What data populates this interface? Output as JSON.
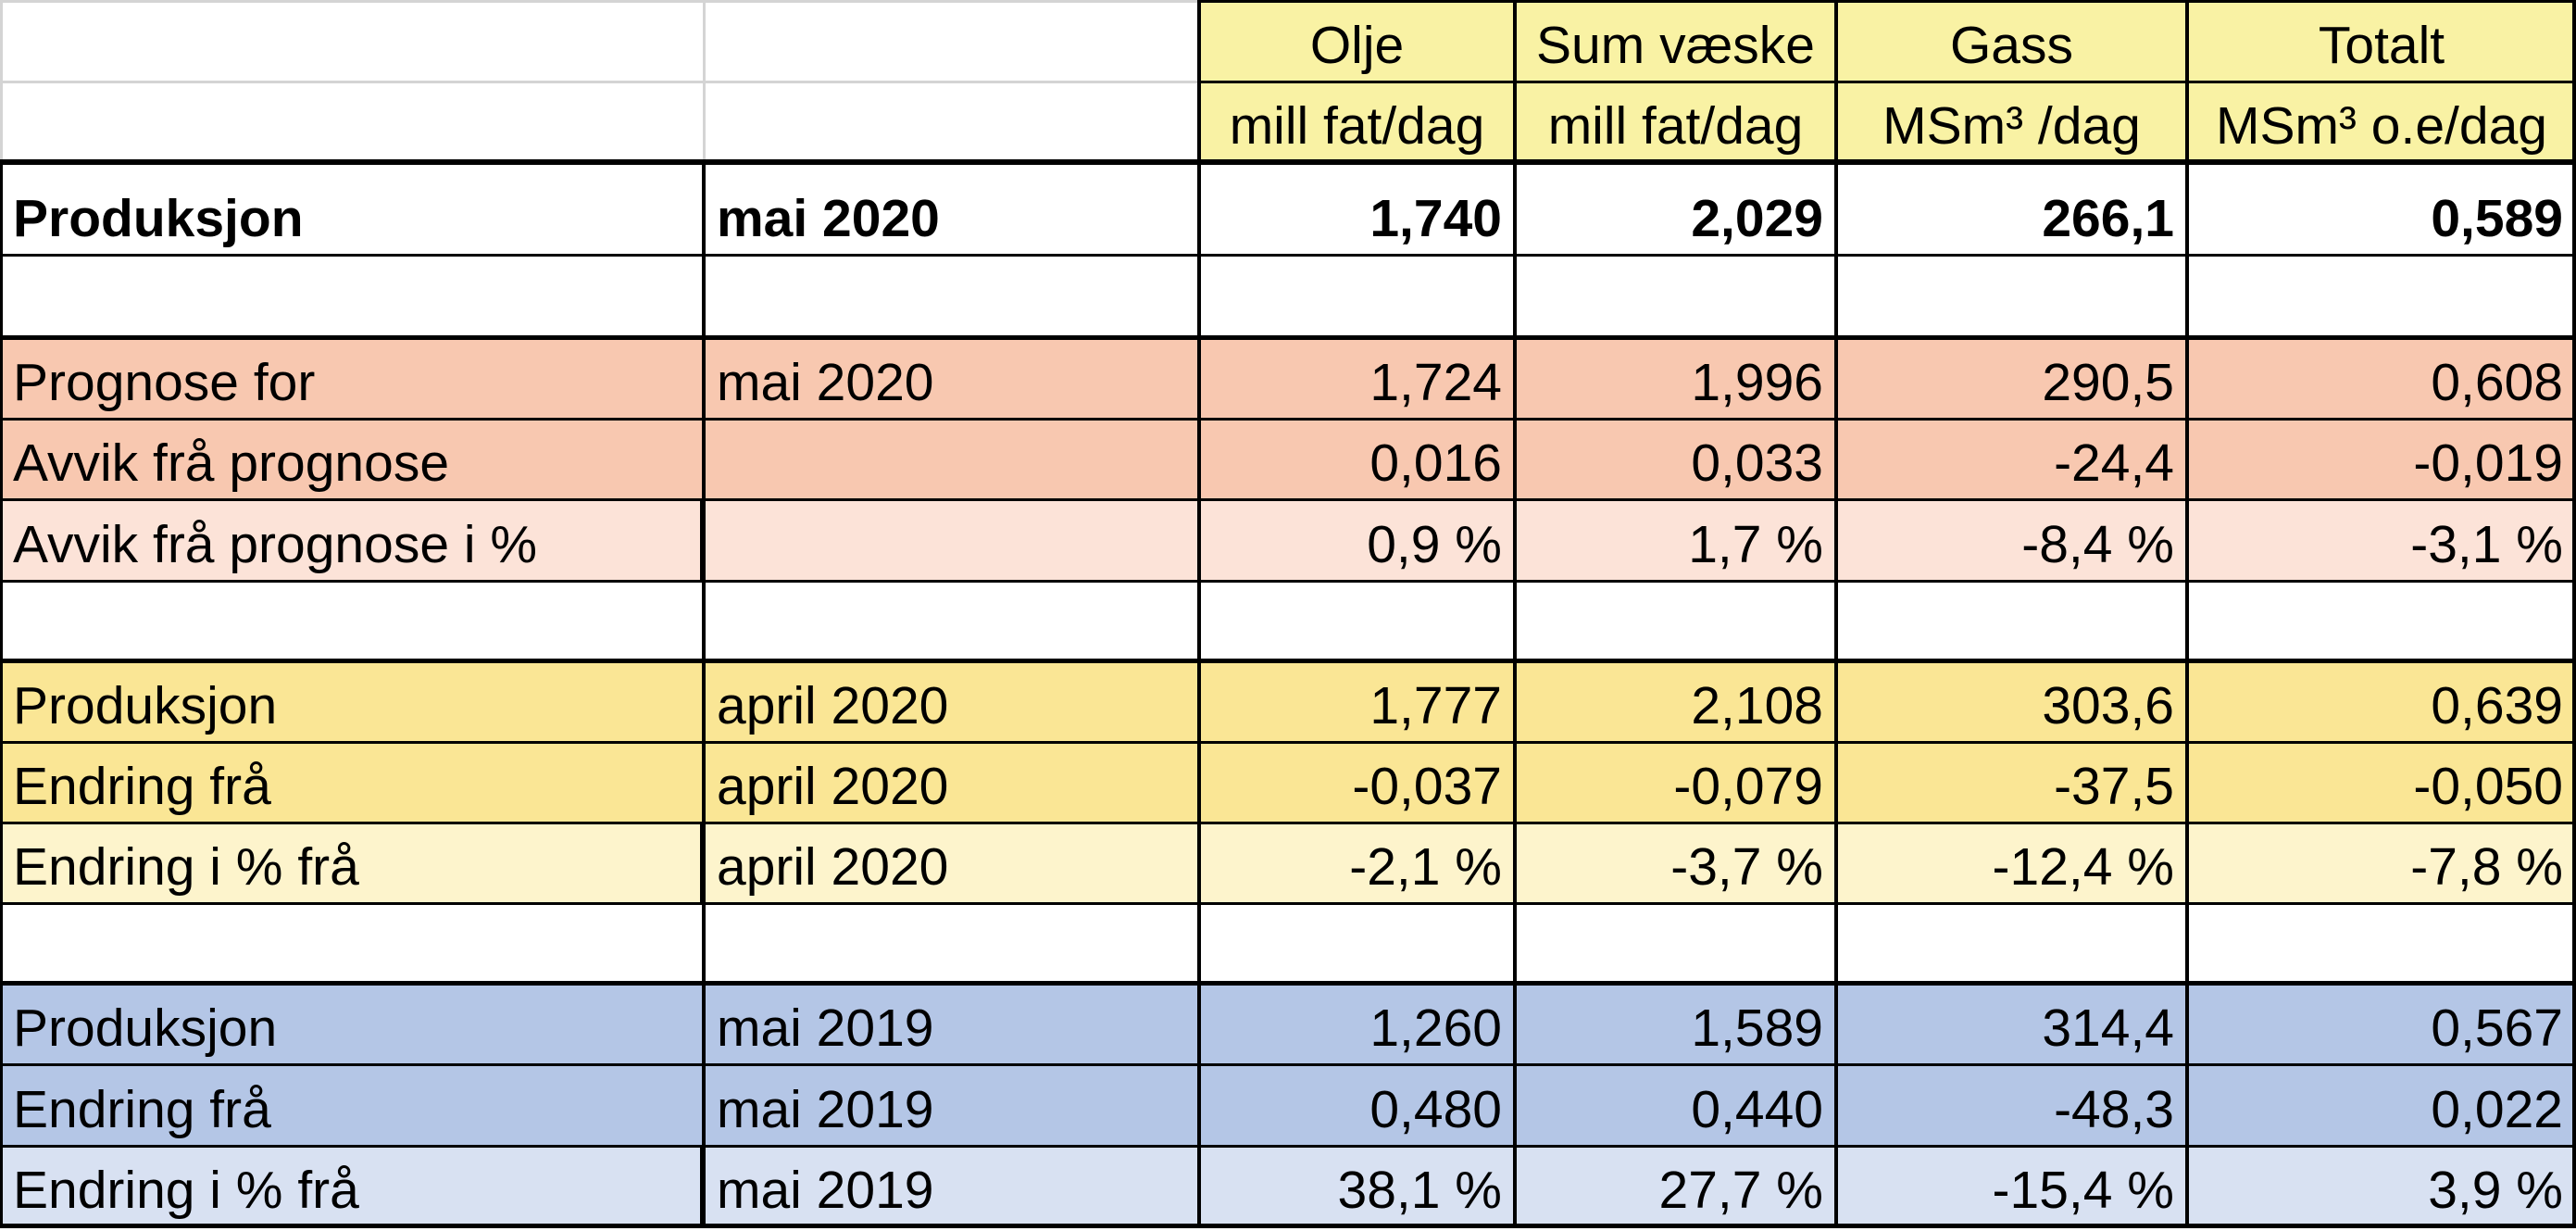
{
  "colors": {
    "header_yellow": "#f9f2a4",
    "prognose_dark": "#f8c8b0",
    "prognose_light": "#fce3d8",
    "april_dark": "#fae695",
    "april_light": "#fdf4cc",
    "year_dark": "#b4c6e6",
    "year_light": "#d8e1f2",
    "white": "#ffffff"
  },
  "header": {
    "row1": [
      "Olje",
      "Sum væske",
      "Gass",
      "Totalt"
    ],
    "row2": [
      "mill fat/dag",
      "mill fat/dag",
      "MSm³ /dag",
      "MSm³ o.e/dag"
    ]
  },
  "rows": [
    {
      "label": "Produksjon",
      "period": "mai 2020",
      "values": [
        "1,740",
        "2,029",
        "266,1",
        "0,589"
      ],
      "tone": "white",
      "bold": true
    },
    {
      "label": "",
      "period": "",
      "values": [
        "",
        "",
        "",
        ""
      ],
      "tone": "white",
      "bold": false
    },
    {
      "label": "Prognose for",
      "period": "mai 2020",
      "values": [
        "1,724",
        "1,996",
        "290,5",
        "0,608"
      ],
      "tone": "prognose_dark",
      "bold": false
    },
    {
      "label": "Avvik frå prognose",
      "period": "",
      "values": [
        "0,016",
        "0,033",
        "-24,4",
        "-0,019"
      ],
      "tone": "prognose_dark",
      "bold": false
    },
    {
      "label": "Avvik frå prognose i %",
      "period": "",
      "values": [
        "0,9 %",
        "1,7 %",
        "-8,4 %",
        "-3,1 %"
      ],
      "tone": "prognose_light",
      "bold": false
    },
    {
      "label": "",
      "period": "",
      "values": [
        "",
        "",
        "",
        ""
      ],
      "tone": "white",
      "bold": false
    },
    {
      "label": "Produksjon",
      "period": "april 2020",
      "values": [
        "1,777",
        "2,108",
        "303,6",
        "0,639"
      ],
      "tone": "april_dark",
      "bold": false
    },
    {
      "label": "Endring frå",
      "period": "april 2020",
      "values": [
        "-0,037",
        "-0,079",
        "-37,5",
        "-0,050"
      ],
      "tone": "april_dark",
      "bold": false
    },
    {
      "label": "Endring i % frå",
      "period": "april 2020",
      "values": [
        "-2,1 %",
        "-3,7 %",
        "-12,4 %",
        "-7,8 %"
      ],
      "tone": "april_light",
      "bold": false
    },
    {
      "label": "",
      "period": "",
      "values": [
        "",
        "",
        "",
        ""
      ],
      "tone": "white",
      "bold": false
    },
    {
      "label": "Produksjon",
      "period": "mai 2019",
      "values": [
        "1,260",
        "1,589",
        "314,4",
        "0,567"
      ],
      "tone": "year_dark",
      "bold": false
    },
    {
      "label": "Endring frå",
      "period": "mai 2019",
      "values": [
        "0,480",
        "0,440",
        "-48,3",
        "0,022"
      ],
      "tone": "year_dark",
      "bold": false
    },
    {
      "label": "Endring i % frå",
      "period": "mai 2019",
      "values": [
        "38,1 %",
        "27,7 %",
        "-15,4 %",
        "3,9 %"
      ],
      "tone": "year_light",
      "bold": false
    }
  ]
}
